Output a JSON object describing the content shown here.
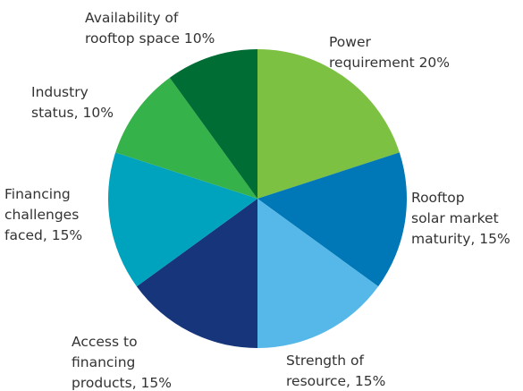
{
  "chart_data": {
    "type": "pie",
    "categories": [
      "Power\nrequirement 20%",
      "Rooftop\nsolar market\nmaturity, 15%",
      "Strength of\nresource, 15%",
      "Access to\nfinancing\nproducts, 15%",
      "Financing\nchallenges\nfaced, 15%",
      "Industry\nstatus, 10%",
      "Availability of\nrooftop space 10%"
    ],
    "values": [
      20,
      15,
      15,
      15,
      15,
      10,
      10
    ],
    "colors": [
      "#7dc142",
      "#0077b6",
      "#55b8e8",
      "#17357b",
      "#00a3bd",
      "#36b24a",
      "#006d35"
    ]
  }
}
